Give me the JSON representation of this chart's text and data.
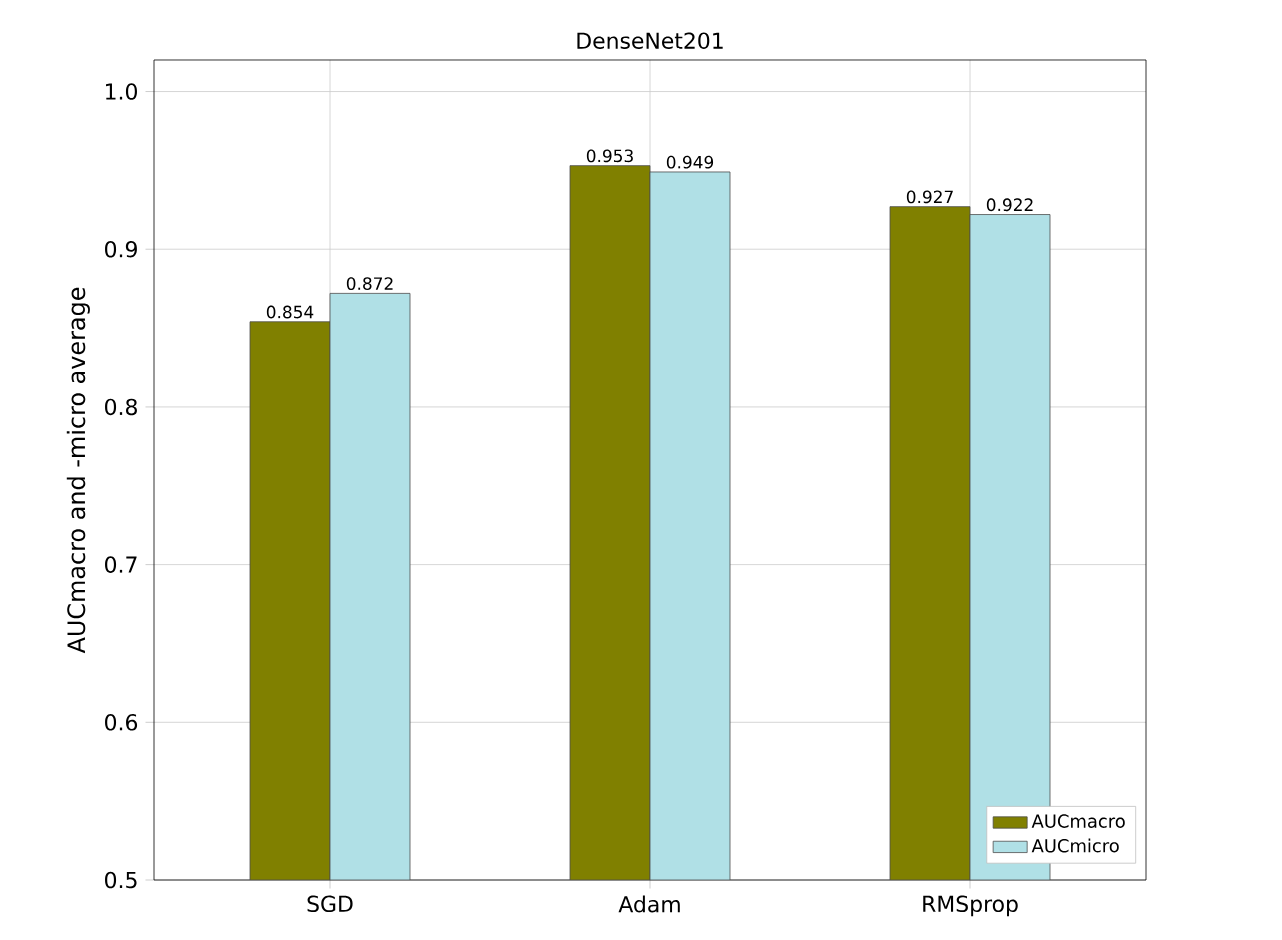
{
  "chart_data": {
    "type": "bar",
    "title": "DenseNet201",
    "ylabel": "AUCmacro and -micro average",
    "categories": [
      "SGD",
      "Adam",
      "RMSprop"
    ],
    "series": [
      {
        "name": "AUCmacro",
        "color": "#808000",
        "values": [
          0.854,
          0.953,
          0.927
        ]
      },
      {
        "name": "AUCmicro",
        "color": "#b0e0e6",
        "values": [
          0.872,
          0.949,
          0.922
        ]
      }
    ],
    "ylim": [
      0.5,
      1.02
    ],
    "yticks": [
      0.5,
      0.6,
      0.7,
      0.8,
      0.9,
      {
        "value": 1.0,
        "label": "1.0"
      }
    ],
    "grid": true,
    "legend": "bottom right",
    "data_labels": true
  }
}
